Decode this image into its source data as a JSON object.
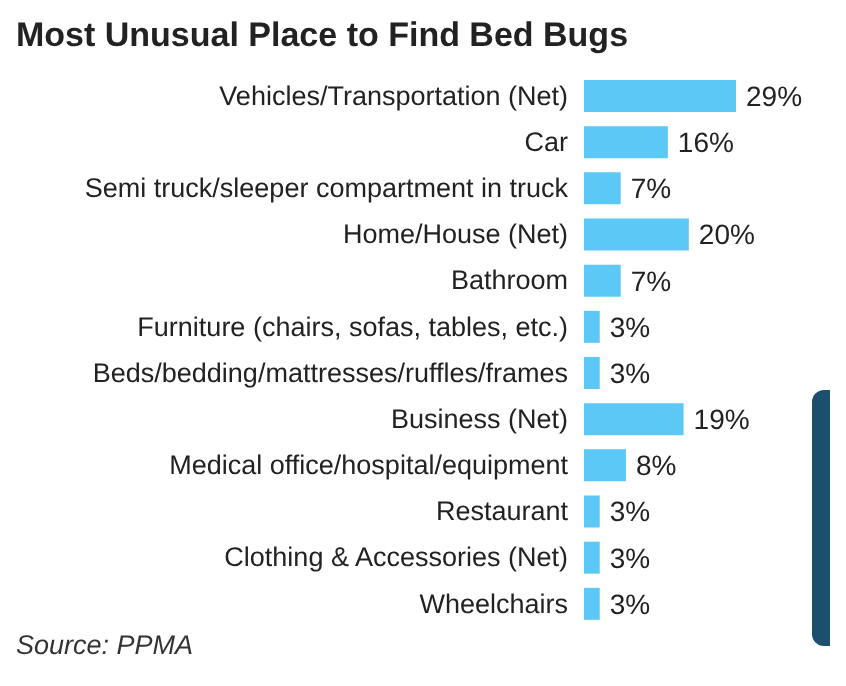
{
  "chart_data": {
    "type": "bar",
    "orientation": "horizontal",
    "title": "Most Unusual Place to Find Bed Bugs",
    "categories": [
      "Vehicles/Transportation (Net)",
      "Car",
      "Semi truck/sleeper compartment in truck",
      "Home/House (Net)",
      "Bathroom",
      "Furniture (chairs, sofas, tables, etc.)",
      "Beds/bedding/mattresses/ruffles/frames",
      "Business (Net)",
      "Medical office/hospital/equipment",
      "Restaurant",
      "Clothing & Accessories (Net)",
      "Wheelchairs"
    ],
    "values": [
      29,
      16,
      7,
      20,
      7,
      3,
      3,
      19,
      8,
      3,
      3,
      3
    ],
    "value_labels": [
      "29%",
      "16%",
      "7%",
      "20%",
      "7%",
      "3%",
      "3%",
      "19%",
      "8%",
      "3%",
      "3%",
      "3%"
    ],
    "color": "#5bc8f5",
    "annotations": [
      "Source: PPMA"
    ]
  }
}
